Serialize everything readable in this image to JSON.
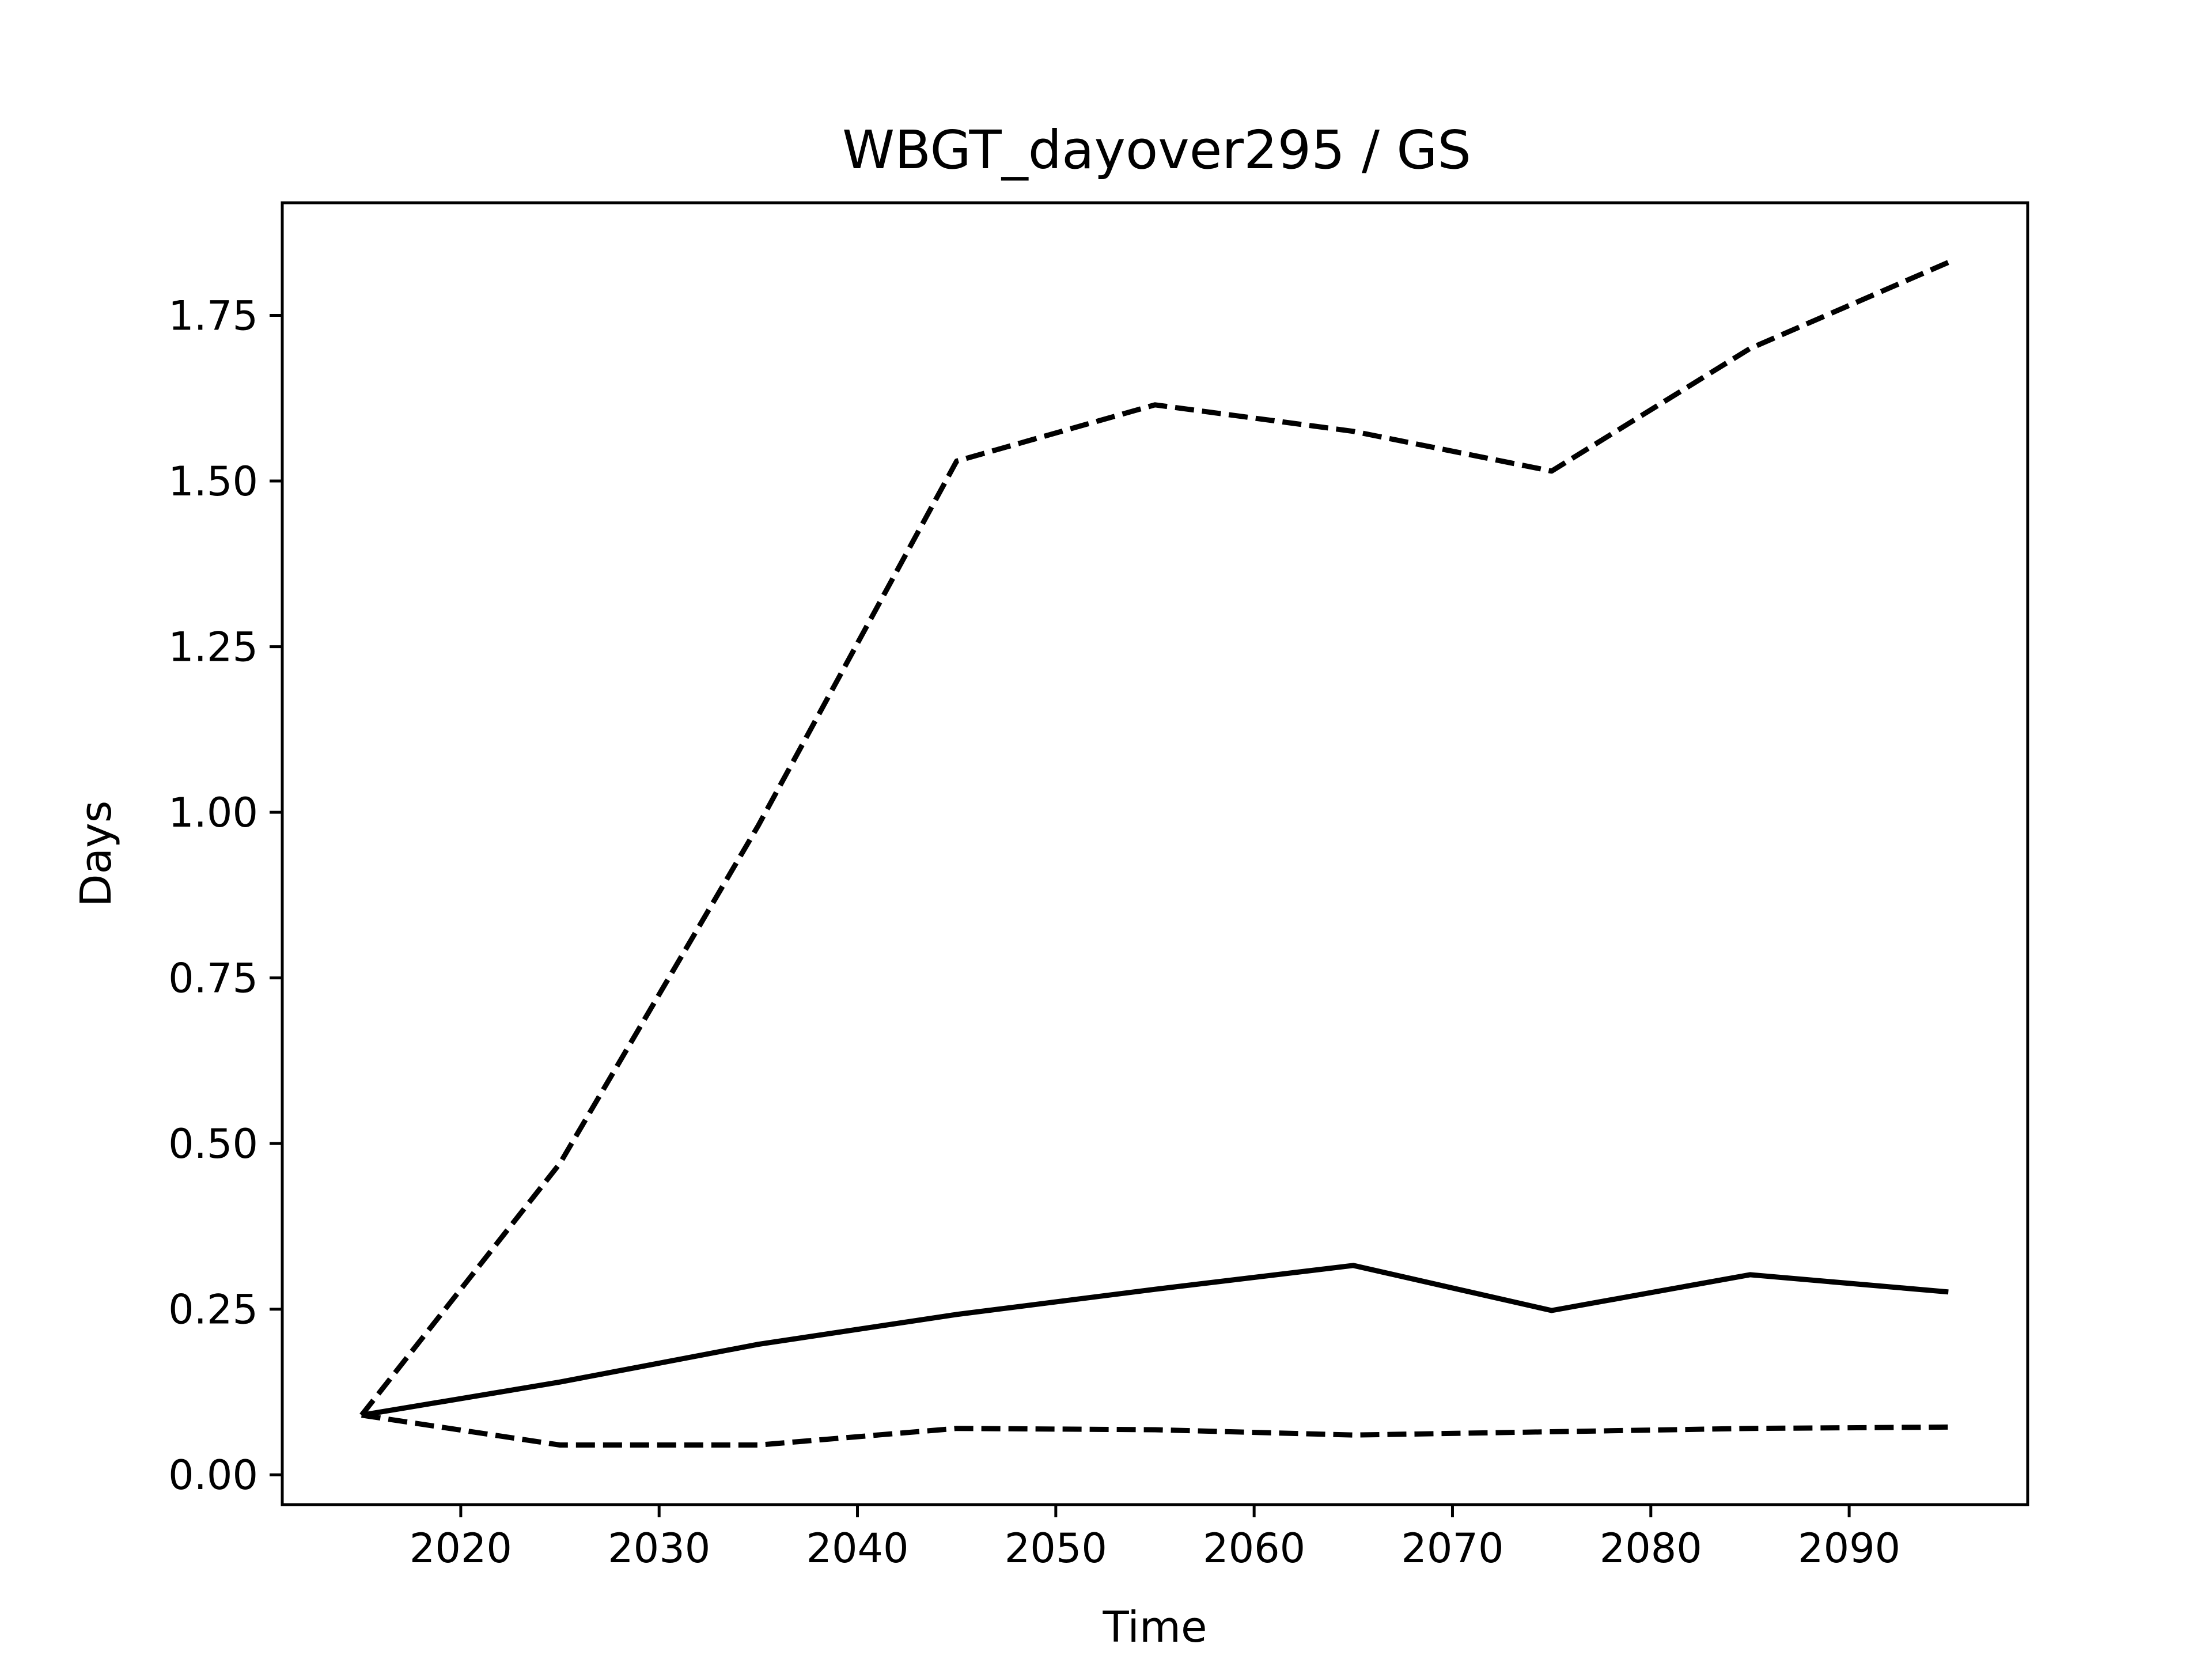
{
  "chart_data": {
    "type": "line",
    "title": "WBGT_dayover295 / GS",
    "xlabel": "Time",
    "ylabel": "Days",
    "xlim": [
      2011,
      2099
    ],
    "ylim": [
      -0.045,
      1.92
    ],
    "x_ticks": [
      2020,
      2030,
      2040,
      2050,
      2060,
      2070,
      2080,
      2090
    ],
    "x_tick_labels": [
      "2020",
      "2030",
      "2040",
      "2050",
      "2060",
      "2070",
      "2080",
      "2090"
    ],
    "y_ticks": [
      0.0,
      0.25,
      0.5,
      0.75,
      1.0,
      1.25,
      1.5,
      1.75
    ],
    "y_tick_labels": [
      "0.00",
      "0.25",
      "0.50",
      "0.75",
      "1.00",
      "1.25",
      "1.50",
      "1.75"
    ],
    "grid": false,
    "legend": null,
    "x": [
      2015,
      2025,
      2035,
      2045,
      2055,
      2065,
      2075,
      2085,
      2095
    ],
    "series": [
      {
        "style": "dashed",
        "color": "#000000",
        "values": [
          0.09,
          0.47,
          0.98,
          1.53,
          1.615,
          1.575,
          1.515,
          1.7,
          1.83
        ]
      },
      {
        "style": "solid",
        "color": "#000000",
        "values": [
          0.09,
          0.14,
          0.197,
          0.242,
          0.28,
          0.316,
          0.248,
          0.302,
          0.276
        ]
      },
      {
        "style": "dashed",
        "color": "#000000",
        "values": [
          0.09,
          0.045,
          0.045,
          0.07,
          0.068,
          0.06,
          0.065,
          0.07,
          0.072
        ]
      }
    ]
  }
}
